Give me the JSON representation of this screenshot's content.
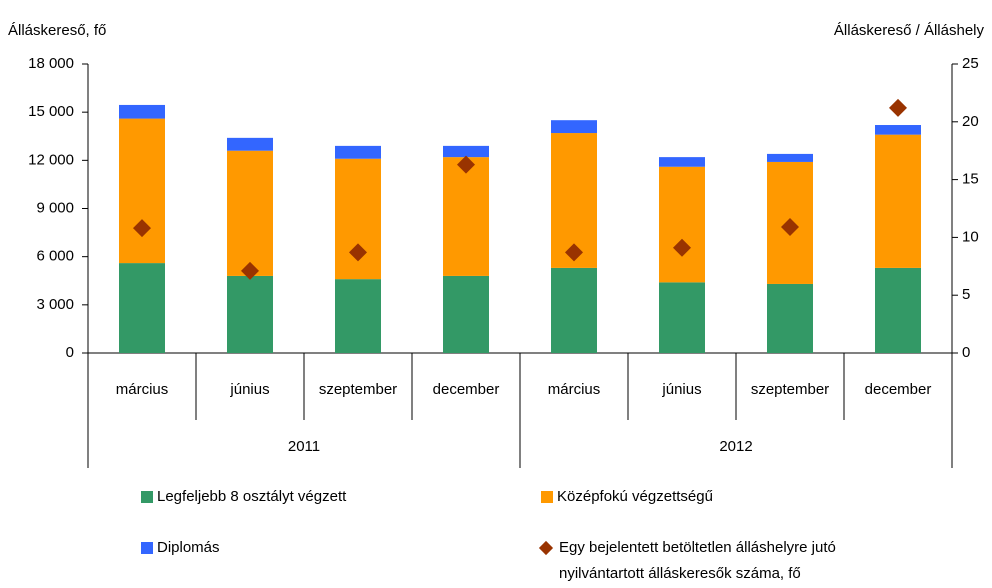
{
  "chart_data": {
    "type": "bar",
    "stacked": true,
    "y_axis_title": "Álláskereső, fő",
    "y2_axis_title": "Álláskereső / Álláshely",
    "categories": [
      "március",
      "június",
      "szeptember",
      "december",
      "március",
      "június",
      "szeptember",
      "december"
    ],
    "groups": [
      "2011",
      "2012"
    ],
    "series": [
      {
        "name": "Legfeljebb 8 osztályt végzett",
        "color": "#339966",
        "values": [
          5600,
          4800,
          4600,
          4800,
          5300,
          4400,
          4300,
          5300
        ]
      },
      {
        "name": "Középfokú végzettségű",
        "color": "#ff9900",
        "values": [
          9000,
          7800,
          7500,
          7400,
          8400,
          7200,
          7600,
          8300
        ]
      },
      {
        "name": "Diplomás",
        "color": "#3366ff",
        "values": [
          850,
          800,
          800,
          700,
          800,
          600,
          500,
          600
        ]
      },
      {
        "name": "Egy bejelentett betöltetlen álláshelyre jutó nyilvántartott álláskeresők száma, fő",
        "color": "#993300",
        "axis": "y2",
        "marker": "diamond",
        "values": [
          10.8,
          7.1,
          8.7,
          16.3,
          8.7,
          9.1,
          10.9,
          21.2
        ]
      }
    ],
    "ylim": [
      0,
      18000
    ],
    "yticks": [
      0,
      {
        "value": 3000,
        "label": "3 000"
      },
      {
        "value": 6000,
        "label": "6 000"
      },
      {
        "value": 9000,
        "label": "9 000"
      },
      {
        "value": 12000,
        "label": "12 000"
      },
      {
        "value": 15000,
        "label": "15 000"
      },
      {
        "value": 18000,
        "label": "18 000"
      }
    ],
    "y2lim": [
      0,
      25
    ],
    "y2ticks": [
      0,
      5,
      10,
      15,
      20,
      25
    ],
    "grid": false,
    "legend": "bottom"
  }
}
